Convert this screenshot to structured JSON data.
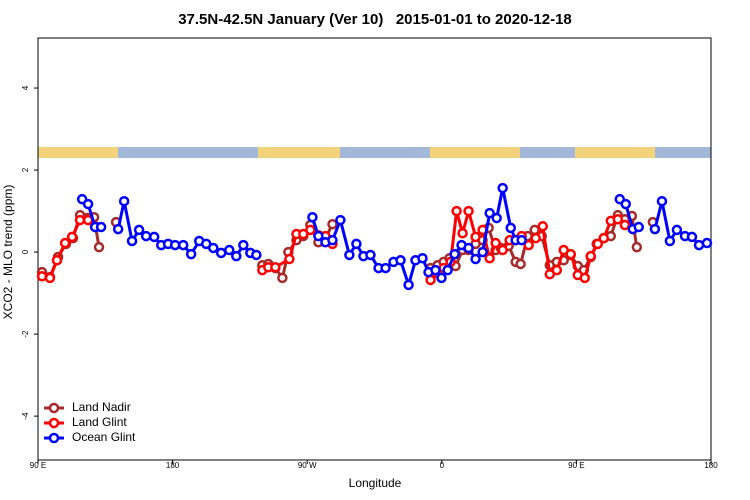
{
  "chart_data": {
    "type": "line",
    "title": "37.5N-42.5N January (Ver 10)   2015-01-01 to 2020-12-18",
    "x_label": "Longitude",
    "y_label": "XCO2 - MLO trend (ppm)",
    "xlim": [
      90,
      540
    ],
    "ylim": [
      -5.07,
      5.22
    ],
    "xticks": [
      {
        "value": 90,
        "label": "90 E"
      },
      180,
      {
        "value": 270,
        "label": "90 W"
      },
      {
        "value": 360,
        "label": "0"
      },
      {
        "value": 450,
        "label": "90 E"
      },
      {
        "value": 540,
        "label": "180"
      }
    ],
    "yticks": [
      4,
      2,
      0,
      -2,
      -4
    ],
    "legend": "bottom-left",
    "series": [
      {
        "name": "Land Nadir",
        "color": "#a52a2a",
        "x": [
          92.7,
          98.0,
          103.4,
          108.7,
          113.4,
          118.1,
          122.8,
          127.5,
          130.8,
          null,
          142.2,
          null,
          240.0,
          244.0,
          248.7,
          253.4,
          257.4,
          262.8,
          267.4,
          272.1,
          277.5,
          282.2,
          286.9,
          null,
          352.5,
          357.2,
          361.2,
          365.2,
          369.2,
          373.9,
          377.9,
          382.6,
          387.3,
          391.3,
          396.0,
          399.4,
          404.7,
          409.4,
          412.7,
          417.4,
          422.1,
          426.8,
          432.2,
          436.9,
          441.5,
          446.2,
          450.9,
          455.0,
          459.6,
          463.6,
          468.3,
          473.0,
          477.7,
          482.4,
          487.1,
          490.4,
          null,
          501.1
        ],
        "values": [
          -0.49,
          -0.61,
          -0.12,
          0.2,
          0.34,
          0.9,
          0.83,
          0.85,
          0.12,
          null,
          0.73,
          null,
          -0.32,
          -0.29,
          -0.39,
          -0.63,
          0,
          0.29,
          0.39,
          0.66,
          0.24,
          0.34,
          0.68,
          null,
          -0.39,
          -0.32,
          -0.24,
          -0.15,
          -0.34,
          0.05,
          0.05,
          0.2,
          0.29,
          0.59,
          0.05,
          0.1,
          0.15,
          -0.24,
          -0.29,
          0.39,
          0.54,
          0.39,
          -0.32,
          -0.24,
          -0.2,
          -0.07,
          -0.34,
          -0.44,
          -0.12,
          0.2,
          0.34,
          0.39,
          0.9,
          0.8,
          0.88,
          0.12,
          null,
          0.73
        ]
      },
      {
        "name": "Land Glint",
        "color": "#ff0000",
        "x": [
          92.7,
          98.0,
          102.7,
          108.1,
          112.8,
          118.1,
          123.5,
          128.2,
          null,
          240.0,
          244.0,
          248.7,
          258.1,
          262.8,
          267.4,
          272.1,
          277.5,
          282.2,
          286.9,
          null,
          352.5,
          357.2,
          361.2,
          365.9,
          369.9,
          373.9,
          377.9,
          382.6,
          387.3,
          392.0,
          396.0,
          400.7,
          405.4,
          409.4,
          413.4,
          418.1,
          422.8,
          427.5,
          432.2,
          436.9,
          441.5,
          446.2,
          450.9,
          455.6,
          459.6,
          464.3,
          468.3,
          473.0,
          477.7,
          482.4
        ],
        "values": [
          -0.59,
          -0.63,
          -0.2,
          0.22,
          0.37,
          0.78,
          0.78,
          0.63,
          null,
          -0.44,
          -0.37,
          -0.37,
          -0.17,
          0.44,
          0.44,
          0.54,
          0.41,
          0.39,
          0.2,
          null,
          -0.68,
          -0.51,
          -0.39,
          -0.24,
          1.0,
          0.46,
          1.0,
          0.37,
          0.54,
          -0.15,
          0.22,
          0.05,
          0.29,
          0.29,
          0.39,
          0.17,
          0.34,
          0.63,
          -0.54,
          -0.44,
          0.05,
          -0.05,
          -0.56,
          -0.63,
          -0.1,
          0.2,
          0.34,
          0.76,
          0.8,
          0.66
        ]
      },
      {
        "name": "Ocean Glint",
        "color": "#0000ff",
        "x": [
          119.5,
          123.5,
          128.2,
          132.2,
          null,
          143.6,
          147.6,
          152.9,
          157.6,
          162.3,
          167.7,
          172.4,
          177.0,
          181.7,
          187.1,
          192.4,
          197.8,
          202.5,
          207.2,
          212.5,
          217.9,
          222.6,
          227.3,
          232.0,
          236.0,
          null,
          273.5,
          277.5,
          282.2,
          286.9,
          292.2,
          298.2,
          302.9,
          307.6,
          312.3,
          317.7,
          322.4,
          327.7,
          332.4,
          337.8,
          342.4,
          347.1,
          351.1,
          355.8,
          359.8,
          363.9,
          368.6,
          373.2,
          377.9,
          382.6,
          387.3,
          392.0,
          396.7,
          400.7,
          406.1,
          409.4,
          413.4,
          null,
          479.0,
          483.0,
          487.7,
          491.7,
          null,
          502.5,
          507.2,
          512.5,
          517.2,
          522.6,
          527.3,
          532.0,
          537.3
        ],
        "values": [
          1.29,
          1.17,
          0.61,
          0.61,
          null,
          0.56,
          1.24,
          0.27,
          0.54,
          0.39,
          0.37,
          0.17,
          0.2,
          0.17,
          0.17,
          -0.05,
          0.27,
          0.2,
          0.1,
          -0.02,
          0.05,
          -0.1,
          0.17,
          -0.02,
          -0.07,
          null,
          0.85,
          0.39,
          0.24,
          0.29,
          0.78,
          -0.07,
          0.2,
          -0.1,
          -0.07,
          -0.39,
          -0.39,
          -0.24,
          -0.2,
          -0.8,
          -0.2,
          -0.15,
          -0.49,
          -0.44,
          -0.63,
          -0.44,
          -0.05,
          0.17,
          0.1,
          -0.17,
          0,
          0.95,
          0.83,
          1.56,
          0.59,
          0.29,
          0.29,
          null,
          1.29,
          1.17,
          0.56,
          0.61,
          null,
          0.56,
          1.24,
          0.27,
          0.54,
          0.39,
          0.37,
          0.17,
          0.22
        ]
      }
    ]
  }
}
